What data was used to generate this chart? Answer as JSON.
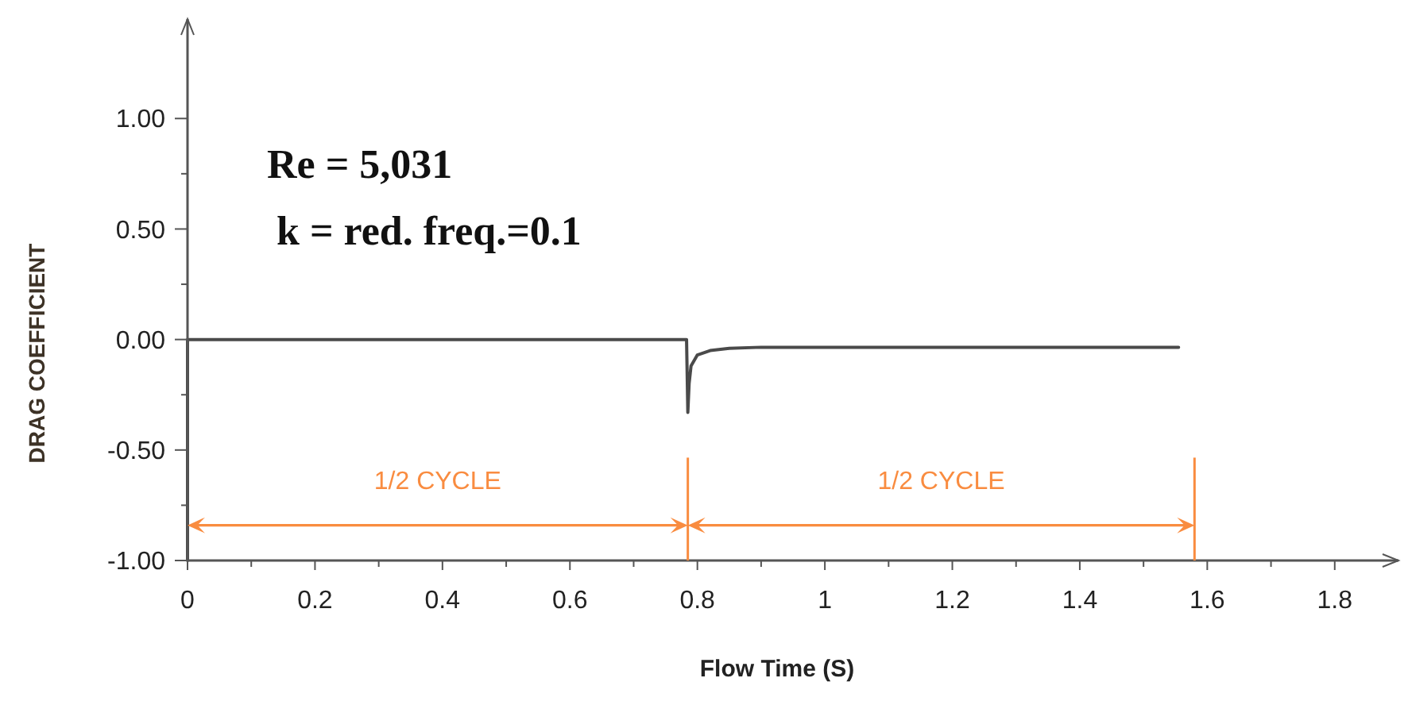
{
  "chart_data": {
    "type": "line",
    "xlabel": "Flow Time (S)",
    "ylabel": "DRAG COEFFICIENT",
    "annotations": [
      "Re = 5,031",
      "k = red. freq.=0.1",
      "1/2 CYCLE",
      "1/2 CYCLE"
    ],
    "x": [
      0,
      0,
      0,
      0.005,
      0.3,
      0.6,
      0.783,
      0.785,
      0.787,
      0.79,
      0.8,
      0.82,
      0.85,
      0.9,
      1.0,
      1.2,
      1.4,
      1.555
    ],
    "series": [
      {
        "color": "#4a4a4a",
        "values": [
          -1.0,
          -0.54,
          0.0,
          0.0,
          0.0,
          0.0,
          0.0,
          -0.33,
          -0.2,
          -0.12,
          -0.07,
          -0.05,
          -0.04,
          -0.035,
          -0.035,
          -0.035,
          -0.035,
          -0.035
        ]
      }
    ],
    "xlim": [
      0,
      1.9
    ],
    "ylim": [
      -1,
      1.45
    ],
    "xticks": [
      0,
      {
        "value": 0.1,
        "label": null
      },
      0.2,
      {
        "value": 0.3,
        "label": null
      },
      0.4,
      {
        "value": 0.5,
        "label": null
      },
      0.6,
      {
        "value": 0.7,
        "label": null
      },
      0.8,
      {
        "value": 0.9,
        "label": null
      },
      1,
      {
        "value": 1.1,
        "label": null
      },
      1.2,
      {
        "value": 1.3,
        "label": null
      },
      1.4,
      {
        "value": 1.5,
        "label": null
      },
      1.6,
      {
        "value": 1.7,
        "label": null
      },
      1.8
    ],
    "yticks": [
      {
        "value": -1,
        "label": "-1.00"
      },
      {
        "value": -0.75,
        "label": null
      },
      {
        "value": -0.5,
        "label": "-0.50"
      },
      {
        "value": -0.25,
        "label": null
      },
      {
        "value": 0,
        "label": "0.00"
      },
      {
        "value": 0.25,
        "label": null
      },
      {
        "value": 0.5,
        "label": "0.50"
      },
      {
        "value": 0.75,
        "label": null
      },
      {
        "value": 1,
        "label": "1.00"
      }
    ],
    "ref_lines": [
      {
        "axis": "x",
        "value": 0.785,
        "color": "#f98c40"
      },
      {
        "axis": "x",
        "value": 1.58,
        "color": "#f98c40"
      }
    ],
    "grid": false,
    "marker": "none",
    "line_style": "solid"
  }
}
